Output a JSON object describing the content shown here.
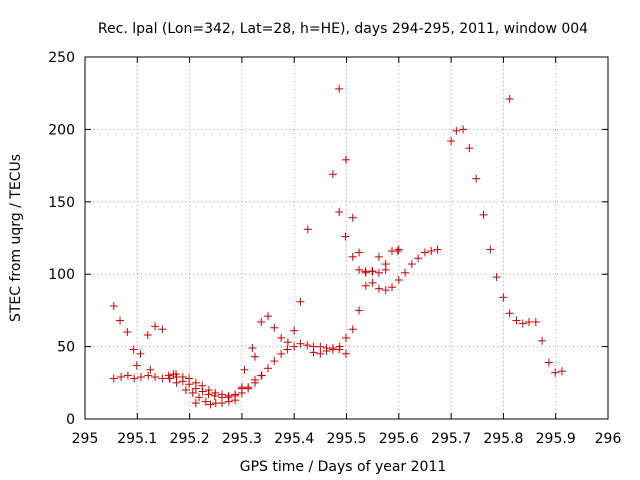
{
  "chart_data": {
    "type": "scatter",
    "title": "Rec. lpal (Lon=342, Lat=28, h=HE), days 294-295, 2011, window 004",
    "xlabel": "GPS time / Days of year 2011",
    "ylabel": "STEC from uqrg / TECUs",
    "xlim": [
      295,
      296
    ],
    "ylim": [
      0,
      250
    ],
    "xticks": [
      "295",
      "295.1",
      "295.2",
      "295.3",
      "295.4",
      "295.5",
      "295.6",
      "295.7",
      "295.8",
      "295.9",
      "296"
    ],
    "yticks": [
      "0",
      "50",
      "100",
      "150",
      "200",
      "250"
    ],
    "grid": true,
    "marker": "+",
    "color": "#cc0000",
    "x": [
      295.055,
      295.069,
      295.082,
      295.094,
      295.107,
      295.121,
      295.134,
      295.148,
      295.162,
      295.175,
      295.187,
      295.199,
      295.212,
      295.225,
      295.236,
      295.248,
      295.262,
      295.274,
      295.287,
      295.3,
      295.312,
      295.325,
      295.337,
      295.35,
      295.362,
      295.375,
      295.387,
      295.4,
      295.412,
      295.425,
      295.437,
      295.45,
      295.462,
      295.474,
      295.487,
      295.499,
      295.512,
      295.524,
      295.537,
      295.55,
      295.562,
      295.575,
      295.587,
      295.6,
      295.612,
      295.625,
      295.637,
      295.65,
      295.662,
      295.674,
      295.055,
      295.067,
      295.081,
      295.093,
      295.106,
      295.12,
      295.134,
      295.148,
      295.16,
      295.174,
      295.187,
      295.199,
      295.212,
      295.224,
      295.237,
      295.249,
      295.262,
      295.275,
      295.287,
      295.3,
      295.312,
      295.325,
      295.337,
      295.35,
      295.362,
      295.375,
      295.388,
      295.4,
      295.412,
      295.426,
      295.437,
      295.45,
      295.462,
      295.474,
      295.486,
      295.499,
      295.512,
      295.524,
      295.536,
      295.55,
      295.562,
      295.575,
      295.587,
      295.6,
      295.7,
      295.71,
      295.723,
      295.735,
      295.748,
      295.762,
      295.775,
      295.787,
      295.8,
      295.812,
      295.825,
      295.837,
      295.849,
      295.862,
      295.874,
      295.887,
      295.899,
      295.912,
      295.474,
      295.486,
      295.499,
      295.512,
      295.524,
      295.537,
      295.549,
      295.562,
      295.575,
      295.587,
      295.598,
      295.812,
      295.486,
      295.498,
      295.099,
      295.125,
      295.169,
      295.162,
      295.175,
      295.193,
      295.206,
      295.218,
      295.231,
      295.24,
      295.25,
      295.262,
      295.275,
      295.287,
      295.212,
      295.305,
      295.32,
      295.3,
      295.325,
      295.338
    ],
    "y": [
      28,
      29,
      30,
      28,
      29,
      30,
      29,
      28,
      28,
      29,
      26,
      24,
      21,
      19,
      17,
      16,
      15,
      15,
      16,
      18,
      22,
      25,
      30,
      35,
      40,
      45,
      48,
      50,
      52,
      51,
      50,
      50,
      49,
      49,
      50,
      56,
      62,
      75,
      92,
      94,
      90,
      89,
      91,
      96,
      101,
      107,
      111,
      115,
      116,
      117,
      78,
      68,
      60,
      48,
      45,
      58,
      64,
      62,
      30,
      31,
      29,
      28,
      25,
      23,
      20,
      18,
      17,
      16,
      17,
      22,
      21,
      43,
      67,
      71,
      63,
      56,
      53,
      61,
      81,
      131,
      46,
      45,
      47,
      48,
      48,
      45,
      112,
      115,
      102,
      102,
      112,
      107,
      116,
      117,
      192,
      199,
      200,
      187,
      166,
      141,
      117,
      98,
      84,
      73,
      68,
      66,
      67,
      67,
      54,
      39,
      32,
      33,
      169,
      228,
      179,
      139,
      103,
      101,
      102,
      101,
      103,
      116,
      116,
      221,
      143,
      126,
      37,
      34,
      31,
      28,
      25,
      20,
      18,
      15,
      12,
      10,
      11,
      11,
      12,
      13,
      11,
      34,
      49,
      21,
      27,
      30
    ]
  }
}
